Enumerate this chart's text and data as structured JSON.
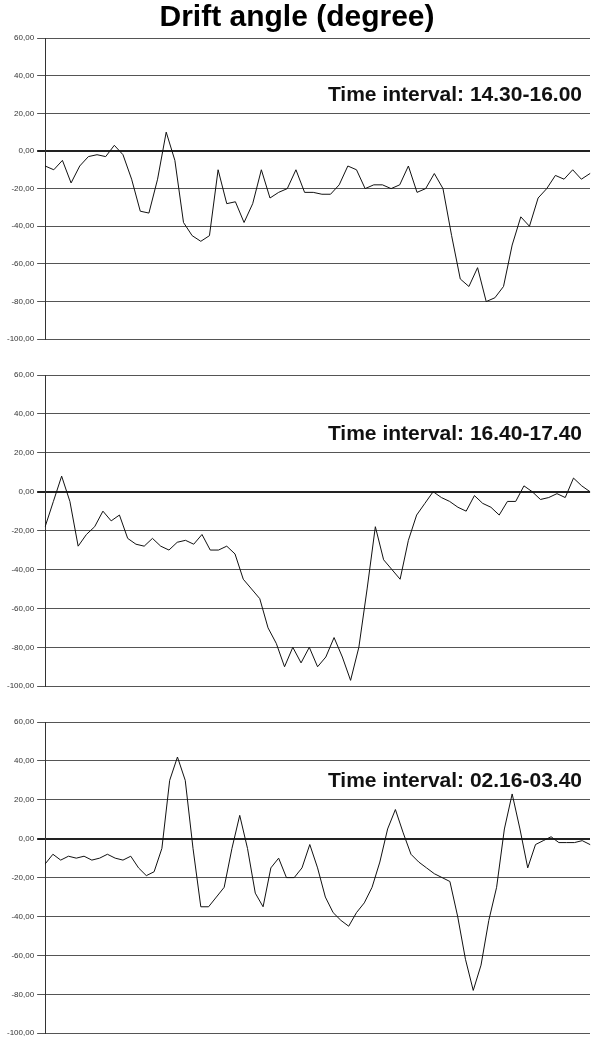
{
  "chart_data": [
    {
      "type": "line",
      "title": "Drift angle (degree)",
      "subtitle": "Time interval: 14.30-16.00",
      "categories": [
        null,
        null,
        null,
        null,
        null,
        null,
        null,
        null,
        null,
        null,
        null,
        null,
        null,
        null,
        null,
        null,
        null,
        null,
        null,
        null,
        null,
        null,
        null,
        null,
        null,
        null,
        null,
        null,
        null,
        null,
        null,
        null,
        null,
        null,
        null,
        null,
        null,
        null,
        null,
        null,
        null,
        null,
        null,
        null,
        null,
        null,
        null,
        null,
        null,
        null,
        null,
        null,
        null,
        null,
        null,
        null,
        null,
        null,
        null,
        null,
        null,
        null,
        null,
        null
      ],
      "series": [
        {
          "color": "#111111",
          "values": [
            -8,
            -10,
            -5,
            -17,
            -8,
            -3,
            -2,
            -3,
            3,
            -2,
            -15,
            -32,
            -33,
            -15,
            10,
            -5,
            -38,
            -45,
            -48,
            -45,
            -10,
            -28,
            -27,
            -38,
            -28,
            -10,
            -25,
            -22,
            -20,
            -10,
            -22,
            -22,
            -23,
            -23,
            -18,
            -8,
            -10,
            -20,
            -18,
            -18,
            -20,
            -18,
            -8,
            -22,
            -20,
            -12,
            -20,
            -45,
            -68,
            -72,
            -62,
            -80,
            -78,
            -72,
            -50,
            -35,
            -40,
            -25,
            -20,
            -13,
            -15,
            -10,
            -15,
            -12
          ]
        }
      ],
      "ylim": [
        -100,
        60
      ],
      "yticks": [
        {
          "value": -100,
          "label": "-100,00"
        },
        {
          "value": -80,
          "label": "-80,00"
        },
        {
          "value": -60,
          "label": "-60,00"
        },
        {
          "value": -40,
          "label": "-40,00"
        },
        {
          "value": -20,
          "label": "-20,00"
        },
        {
          "value": 0,
          "label": "0,00"
        },
        {
          "value": 20,
          "label": "20,00"
        },
        {
          "value": 40,
          "label": "40,00"
        },
        {
          "value": 60,
          "label": "60,00"
        }
      ],
      "grid": "y",
      "tick_labels": "y",
      "legend": false
    },
    {
      "type": "line",
      "subtitle": "Time interval: 16.40-17.40",
      "categories": [
        null,
        null,
        null,
        null,
        null,
        null,
        null,
        null,
        null,
        null,
        null,
        null,
        null,
        null,
        null,
        null,
        null,
        null,
        null,
        null,
        null,
        null,
        null,
        null,
        null,
        null,
        null,
        null,
        null,
        null,
        null,
        null,
        null,
        null,
        null,
        null,
        null,
        null,
        null,
        null,
        null,
        null,
        null,
        null,
        null,
        null,
        null,
        null,
        null,
        null,
        null,
        null,
        null,
        null,
        null,
        null,
        null,
        null,
        null,
        null,
        null,
        null,
        null,
        null,
        null,
        null,
        null
      ],
      "series": [
        {
          "color": "#111111",
          "values": [
            -18,
            -5,
            8,
            -5,
            -28,
            -22,
            -18,
            -10,
            -15,
            -12,
            -24,
            -27,
            -28,
            -24,
            -28,
            -30,
            -26,
            -25,
            -27,
            -22,
            -30,
            -30,
            -28,
            -32,
            -45,
            -50,
            -55,
            -70,
            -78,
            -90,
            -80,
            -88,
            -80,
            -90,
            -85,
            -75,
            -85,
            -97,
            -80,
            -50,
            -18,
            -35,
            -40,
            -45,
            -25,
            -12,
            -6,
            0,
            -3,
            -5,
            -8,
            -10,
            -2,
            -6,
            -8,
            -12,
            -5,
            -5,
            3,
            0,
            -4,
            -3,
            -1,
            -3,
            7,
            3,
            0
          ]
        }
      ],
      "ylim": [
        -100,
        60
      ],
      "yticks": [
        {
          "value": -100,
          "label": "-100,00"
        },
        {
          "value": -80,
          "label": "-80,00"
        },
        {
          "value": -60,
          "label": "-60,00"
        },
        {
          "value": -40,
          "label": "-40,00"
        },
        {
          "value": -20,
          "label": "-20,00"
        },
        {
          "value": 0,
          "label": "0,00"
        },
        {
          "value": 20,
          "label": "20,00"
        },
        {
          "value": 40,
          "label": "40,00"
        },
        {
          "value": 60,
          "label": "60,00"
        }
      ],
      "grid": "y",
      "tick_labels": "y",
      "legend": false
    },
    {
      "type": "line",
      "subtitle": "Time interval: 02.16-03.40",
      "categories": [
        null,
        null,
        null,
        null,
        null,
        null,
        null,
        null,
        null,
        null,
        null,
        null,
        null,
        null,
        null,
        null,
        null,
        null,
        null,
        null,
        null,
        null,
        null,
        null,
        null,
        null,
        null,
        null,
        null,
        null,
        null,
        null,
        null,
        null,
        null,
        null,
        null,
        null,
        null,
        null,
        null,
        null,
        null,
        null,
        null,
        null,
        null,
        null,
        null,
        null,
        null,
        null,
        null,
        null,
        null,
        null,
        null,
        null,
        null,
        null,
        null,
        null,
        null,
        null,
        null,
        null,
        null,
        null,
        null,
        null,
        null
      ],
      "series": [
        {
          "color": "#111111",
          "values": [
            -13,
            -8,
            -11,
            -9,
            -10,
            -9,
            -11,
            -10,
            -8,
            -10,
            -11,
            -9,
            -15,
            -19,
            -17,
            -5,
            30,
            42,
            30,
            -5,
            -35,
            -35,
            -30,
            -25,
            -5,
            12,
            -5,
            -28,
            -35,
            -15,
            -10,
            -20,
            -20,
            -15,
            -3,
            -15,
            -30,
            -38,
            -42,
            -45,
            -38,
            -33,
            -25,
            -12,
            5,
            15,
            3,
            -8,
            -12,
            -15,
            -18,
            -20,
            -22,
            -40,
            -62,
            -78,
            -65,
            -42,
            -25,
            5,
            23,
            5,
            -15,
            -3,
            -1,
            1,
            -2,
            -2,
            -2,
            -1,
            -3
          ]
        }
      ],
      "ylim": [
        -100,
        60
      ],
      "yticks": [
        {
          "value": -100,
          "label": "-100,00"
        },
        {
          "value": -80,
          "label": "-80,00"
        },
        {
          "value": -60,
          "label": "-60,00"
        },
        {
          "value": -40,
          "label": "-40,00"
        },
        {
          "value": -20,
          "label": "-20,00"
        },
        {
          "value": 0,
          "label": "0,00"
        },
        {
          "value": 20,
          "label": "20,00"
        },
        {
          "value": 40,
          "label": "40,00"
        },
        {
          "value": 60,
          "label": "60,00"
        }
      ],
      "grid": "y",
      "tick_labels": "y",
      "legend": false
    }
  ]
}
